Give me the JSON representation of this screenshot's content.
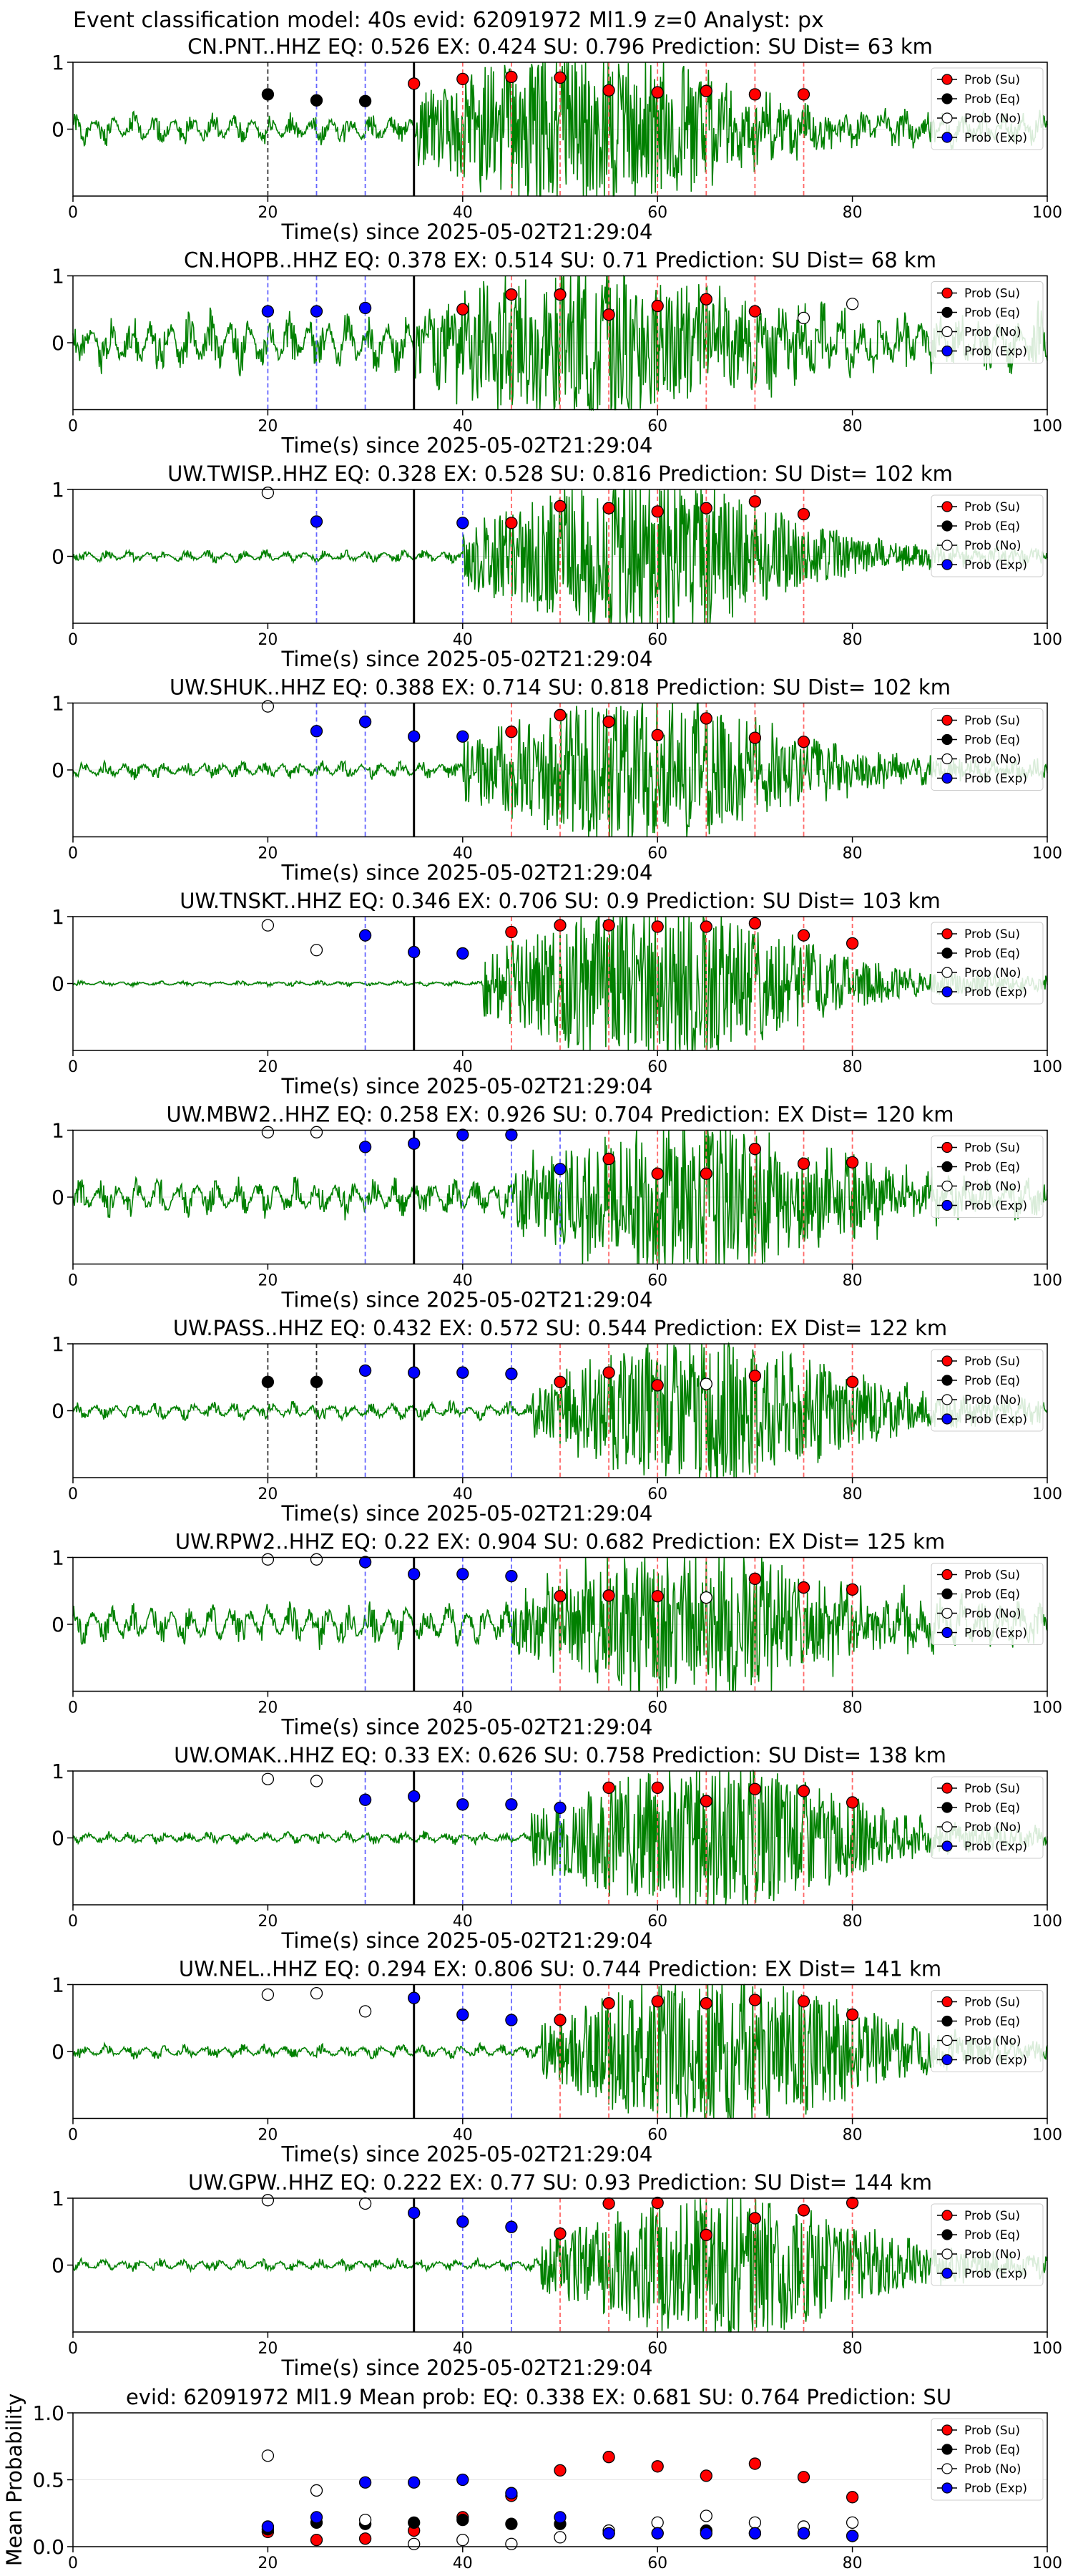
{
  "figure": {
    "suptitle": "Event classification model: 40s evid: 62091972 Ml1.9 z=0 Analyst: px",
    "xlabel": "Time(s) since 2025-05-02T21:29:04",
    "legend": [
      "Prob (Su)",
      "Prob (Eq)",
      "Prob (No)",
      "Prob (Exp)"
    ],
    "colors": {
      "su": "#ff0000",
      "eq": "#000000",
      "no": "#ffffff",
      "exp": "#0000ff",
      "trace": "#008000",
      "blue_line": "#6666ff",
      "red_line": "#ff6666"
    }
  },
  "chart_data": [
    {
      "type": "scatter",
      "title": "CN.PNT..HHZ   EQ: 0.526  EX: 0.424  SU: 0.796   Prediction: SU    Dist= 63 km",
      "xlabel": "Time(s) since 2025-05-02T21:29:04",
      "xlim": [
        0,
        100
      ],
      "ylim": [
        -1,
        1
      ],
      "xticks": [
        0,
        20,
        40,
        60,
        80,
        100
      ],
      "yticks": [
        0,
        1
      ],
      "arrival": 35,
      "noise_level": 0.18,
      "onset": 35,
      "amp": 0.85,
      "seed": 1,
      "series": [
        {
          "name": "Prob (Eq)",
          "x": [
            20,
            25,
            30
          ],
          "y": [
            0.52,
            0.43,
            0.42
          ]
        },
        {
          "name": "Prob (Su)",
          "x": [
            35,
            40,
            45,
            50,
            55,
            60,
            65,
            70,
            75
          ],
          "y": [
            0.68,
            0.75,
            0.78,
            0.77,
            0.58,
            0.55,
            0.57,
            0.52,
            0.52
          ]
        }
      ],
      "blue_lines": [
        25,
        30
      ],
      "black_dashed": [
        20
      ],
      "red_lines": [
        40,
        45,
        50,
        55,
        60,
        65,
        70,
        75
      ]
    },
    {
      "type": "scatter",
      "title": "CN.HOPB..HHZ   EQ: 0.378  EX: 0.514  SU: 0.71   Prediction: SU    Dist= 68 km",
      "xlabel": "Time(s) since 2025-05-02T21:29:04",
      "xlim": [
        0,
        100
      ],
      "ylim": [
        -1,
        1
      ],
      "xticks": [
        0,
        20,
        40,
        60,
        80,
        100
      ],
      "yticks": [
        0,
        1
      ],
      "arrival": 35,
      "noise_level": 0.35,
      "onset": 35,
      "amp": 0.8,
      "seed": 2,
      "series": [
        {
          "name": "Prob (Exp)",
          "x": [
            20,
            25,
            30
          ],
          "y": [
            0.47,
            0.47,
            0.52
          ]
        },
        {
          "name": "Prob (Su)",
          "x": [
            40,
            45,
            50,
            55,
            60,
            65,
            70
          ],
          "y": [
            0.5,
            0.72,
            0.72,
            0.42,
            0.55,
            0.65,
            0.47
          ]
        },
        {
          "name": "Prob (No)",
          "x": [
            75,
            80
          ],
          "y": [
            0.37,
            0.58
          ]
        }
      ],
      "blue_lines": [
        20,
        25,
        30
      ],
      "black_dashed": [],
      "red_lines": [
        45,
        50,
        55,
        60,
        65,
        70
      ]
    },
    {
      "type": "scatter",
      "title": "UW.TWISP..HHZ   EQ: 0.328  EX: 0.528  SU: 0.816   Prediction: SU    Dist= 102 km",
      "xlabel": "Time(s) since 2025-05-02T21:29:04",
      "xlim": [
        0,
        100
      ],
      "ylim": [
        -1,
        1
      ],
      "xticks": [
        0,
        20,
        40,
        60,
        80,
        100
      ],
      "yticks": [
        0,
        1
      ],
      "arrival": 35,
      "noise_level": 0.07,
      "onset": 40,
      "amp": 0.85,
      "seed": 3,
      "series": [
        {
          "name": "Prob (No)",
          "x": [
            20
          ],
          "y": [
            0.95
          ]
        },
        {
          "name": "Prob (Exp)",
          "x": [
            25,
            40
          ],
          "y": [
            0.52,
            0.5
          ]
        },
        {
          "name": "Prob (Su)",
          "x": [
            45,
            50,
            55,
            60,
            65,
            70,
            75
          ],
          "y": [
            0.5,
            0.75,
            0.72,
            0.67,
            0.72,
            0.82,
            0.63
          ]
        }
      ],
      "blue_lines": [
        25,
        40
      ],
      "black_dashed": [],
      "red_lines": [
        45,
        50,
        55,
        60,
        65,
        70,
        75
      ]
    },
    {
      "type": "scatter",
      "title": "UW.SHUK..HHZ   EQ: 0.388  EX: 0.714  SU: 0.818   Prediction: SU    Dist= 102 km",
      "xlabel": "Time(s) since 2025-05-02T21:29:04",
      "xlim": [
        0,
        100
      ],
      "ylim": [
        -1,
        1
      ],
      "xticks": [
        0,
        20,
        40,
        60,
        80,
        100
      ],
      "yticks": [
        0,
        1
      ],
      "arrival": 35,
      "noise_level": 0.1,
      "onset": 40,
      "amp": 0.8,
      "seed": 4,
      "series": [
        {
          "name": "Prob (No)",
          "x": [
            20
          ],
          "y": [
            0.95
          ]
        },
        {
          "name": "Prob (Exp)",
          "x": [
            25,
            30,
            35,
            40
          ],
          "y": [
            0.58,
            0.72,
            0.5,
            0.5
          ]
        },
        {
          "name": "Prob (Su)",
          "x": [
            45,
            50,
            55,
            60,
            65,
            70,
            75
          ],
          "y": [
            0.57,
            0.82,
            0.72,
            0.52,
            0.77,
            0.48,
            0.42
          ]
        }
      ],
      "blue_lines": [
        25,
        30
      ],
      "black_dashed": [],
      "red_lines": [
        45,
        50,
        55,
        60,
        65,
        70,
        75
      ]
    },
    {
      "type": "scatter",
      "title": "UW.TNSKT..HHZ   EQ: 0.346  EX: 0.706  SU: 0.9   Prediction: SU    Dist= 103 km",
      "xlabel": "Time(s) since 2025-05-02T21:29:04",
      "xlim": [
        0,
        100
      ],
      "ylim": [
        -1,
        1
      ],
      "xticks": [
        0,
        20,
        40,
        60,
        80,
        100
      ],
      "yticks": [
        0,
        1
      ],
      "arrival": 35,
      "noise_level": 0.03,
      "onset": 42,
      "amp": 0.9,
      "seed": 5,
      "series": [
        {
          "name": "Prob (No)",
          "x": [
            20,
            25
          ],
          "y": [
            0.87,
            0.5
          ]
        },
        {
          "name": "Prob (Exp)",
          "x": [
            30,
            35,
            40
          ],
          "y": [
            0.72,
            0.47,
            0.45
          ]
        },
        {
          "name": "Prob (Su)",
          "x": [
            45,
            50,
            55,
            60,
            65,
            70,
            75,
            80
          ],
          "y": [
            0.77,
            0.87,
            0.87,
            0.85,
            0.85,
            0.9,
            0.72,
            0.6
          ]
        }
      ],
      "blue_lines": [
        30
      ],
      "black_dashed": [],
      "red_lines": [
        45,
        50,
        55,
        60,
        65,
        70,
        75,
        80
      ]
    },
    {
      "type": "scatter",
      "title": "UW.MBW2..HHZ   EQ: 0.258  EX: 0.926  SU: 0.704   Prediction: EX    Dist= 120 km",
      "xlabel": "Time(s) since 2025-05-02T21:29:04",
      "xlim": [
        0,
        100
      ],
      "ylim": [
        -1,
        1
      ],
      "xticks": [
        0,
        20,
        40,
        60,
        80,
        100
      ],
      "yticks": [
        0,
        1
      ],
      "arrival": 35,
      "noise_level": 0.22,
      "onset": 45,
      "amp": 0.8,
      "seed": 6,
      "series": [
        {
          "name": "Prob (No)",
          "x": [
            20,
            25
          ],
          "y": [
            0.97,
            0.97
          ]
        },
        {
          "name": "Prob (Exp)",
          "x": [
            30,
            35,
            40,
            45,
            50
          ],
          "y": [
            0.75,
            0.8,
            0.93,
            0.93,
            0.42
          ]
        },
        {
          "name": "Prob (Su)",
          "x": [
            55,
            60,
            65,
            70,
            75,
            80
          ],
          "y": [
            0.57,
            0.35,
            0.35,
            0.72,
            0.5,
            0.52
          ]
        }
      ],
      "blue_lines": [
        30,
        35,
        40,
        45,
        50
      ],
      "black_dashed": [],
      "red_lines": [
        55,
        60,
        65,
        70,
        75,
        80
      ]
    },
    {
      "type": "scatter",
      "title": "UW.PASS..HHZ   EQ: 0.432  EX: 0.572  SU: 0.544   Prediction: EX    Dist= 122 km",
      "xlabel": "Time(s) since 2025-05-02T21:29:04",
      "xlim": [
        0,
        100
      ],
      "ylim": [
        -1,
        1
      ],
      "xticks": [
        0,
        20,
        40,
        60,
        80,
        100
      ],
      "yticks": [
        0,
        1
      ],
      "arrival": 35,
      "noise_level": 0.1,
      "onset": 47,
      "amp": 0.75,
      "seed": 7,
      "series": [
        {
          "name": "Prob (Eq)",
          "x": [
            20,
            25
          ],
          "y": [
            0.43,
            0.43
          ]
        },
        {
          "name": "Prob (Exp)",
          "x": [
            30,
            35,
            40,
            45
          ],
          "y": [
            0.6,
            0.57,
            0.57,
            0.55
          ]
        },
        {
          "name": "Prob (Su)",
          "x": [
            50,
            55,
            60,
            70,
            80
          ],
          "y": [
            0.43,
            0.57,
            0.38,
            0.52,
            0.43
          ]
        },
        {
          "name": "Prob (No)",
          "x": [
            65
          ],
          "y": [
            0.4
          ]
        }
      ],
      "blue_lines": [
        30,
        35,
        40,
        45
      ],
      "black_dashed": [
        20,
        25
      ],
      "red_lines": [
        50,
        55,
        60,
        65,
        70,
        75,
        80
      ]
    },
    {
      "type": "scatter",
      "title": "UW.RPW2..HHZ   EQ: 0.22  EX: 0.904  SU: 0.682   Prediction: EX    Dist= 125 km",
      "xlabel": "Time(s) since 2025-05-02T21:29:04",
      "xlim": [
        0,
        100
      ],
      "ylim": [
        -1,
        1
      ],
      "xticks": [
        0,
        20,
        40,
        60,
        80,
        100
      ],
      "yticks": [
        0,
        1
      ],
      "arrival": 35,
      "noise_level": 0.25,
      "onset": 45,
      "amp": 0.75,
      "seed": 8,
      "series": [
        {
          "name": "Prob (No)",
          "x": [
            20,
            25
          ],
          "y": [
            0.97,
            0.97
          ]
        },
        {
          "name": "Prob (Exp)",
          "x": [
            30,
            35,
            40,
            45
          ],
          "y": [
            0.93,
            0.75,
            0.75,
            0.72
          ]
        },
        {
          "name": "Prob (Su)",
          "x": [
            50,
            55,
            60,
            70,
            75,
            80
          ],
          "y": [
            0.42,
            0.43,
            0.42,
            0.68,
            0.55,
            0.52
          ]
        },
        {
          "name": "Prob (No)",
          "x": [
            65
          ],
          "y": [
            0.4
          ]
        }
      ],
      "blue_lines": [
        30,
        35,
        40,
        45
      ],
      "black_dashed": [],
      "red_lines": [
        50,
        55,
        60,
        65,
        70,
        75,
        80
      ]
    },
    {
      "type": "scatter",
      "title": "UW.OMAK..HHZ   EQ: 0.33  EX: 0.626  SU: 0.758   Prediction: SU    Dist= 138 km",
      "xlabel": "Time(s) since 2025-05-02T21:29:04",
      "xlim": [
        0,
        100
      ],
      "ylim": [
        -1,
        1
      ],
      "xticks": [
        0,
        20,
        40,
        60,
        80,
        100
      ],
      "yticks": [
        0,
        1
      ],
      "arrival": 35,
      "noise_level": 0.07,
      "onset": 47,
      "amp": 0.8,
      "seed": 9,
      "series": [
        {
          "name": "Prob (No)",
          "x": [
            20,
            25
          ],
          "y": [
            0.88,
            0.85
          ]
        },
        {
          "name": "Prob (Exp)",
          "x": [
            30,
            35,
            40,
            45,
            50
          ],
          "y": [
            0.57,
            0.62,
            0.5,
            0.5,
            0.45
          ]
        },
        {
          "name": "Prob (Su)",
          "x": [
            55,
            60,
            65,
            70,
            75,
            80
          ],
          "y": [
            0.75,
            0.75,
            0.55,
            0.73,
            0.7,
            0.53
          ]
        }
      ],
      "blue_lines": [
        30,
        40,
        45,
        50
      ],
      "black_dashed": [],
      "red_lines": [
        55,
        60,
        65,
        70,
        75,
        80
      ]
    },
    {
      "type": "scatter",
      "title": "UW.NEL..HHZ   EQ: 0.294  EX: 0.806  SU: 0.744   Prediction: EX    Dist= 141 km",
      "xlabel": "Time(s) since 2025-05-02T21:29:04",
      "xlim": [
        0,
        100
      ],
      "ylim": [
        -1,
        1
      ],
      "xticks": [
        0,
        20,
        40,
        60,
        80,
        100
      ],
      "yticks": [
        0,
        1
      ],
      "arrival": 35,
      "noise_level": 0.08,
      "onset": 48,
      "amp": 0.85,
      "seed": 10,
      "series": [
        {
          "name": "Prob (No)",
          "x": [
            20,
            25,
            30
          ],
          "y": [
            0.85,
            0.87,
            0.6
          ]
        },
        {
          "name": "Prob (Exp)",
          "x": [
            35,
            40,
            45
          ],
          "y": [
            0.8,
            0.55,
            0.47
          ]
        },
        {
          "name": "Prob (Su)",
          "x": [
            50,
            55,
            60,
            65,
            70,
            75,
            80
          ],
          "y": [
            0.47,
            0.72,
            0.75,
            0.72,
            0.77,
            0.75,
            0.55
          ]
        }
      ],
      "blue_lines": [
        40,
        45
      ],
      "black_dashed": [],
      "red_lines": [
        50,
        55,
        60,
        65,
        70,
        75,
        80
      ]
    },
    {
      "type": "scatter",
      "title": "UW.GPW..HHZ   EQ: 0.222  EX: 0.77  SU: 0.93   Prediction: SU    Dist= 144 km",
      "xlabel": "Time(s) since 2025-05-02T21:29:04",
      "xlim": [
        0,
        100
      ],
      "ylim": [
        -1,
        1
      ],
      "xticks": [
        0,
        20,
        40,
        60,
        80,
        100
      ],
      "yticks": [
        0,
        1
      ],
      "arrival": 35,
      "noise_level": 0.07,
      "onset": 48,
      "amp": 0.75,
      "seed": 11,
      "series": [
        {
          "name": "Prob (No)",
          "x": [
            20,
            30
          ],
          "y": [
            0.97,
            0.92
          ]
        },
        {
          "name": "Prob (Exp)",
          "x": [
            35,
            40,
            45
          ],
          "y": [
            0.78,
            0.65,
            0.57
          ]
        },
        {
          "name": "Prob (Su)",
          "x": [
            50,
            55,
            60,
            65,
            70,
            75,
            80
          ],
          "y": [
            0.47,
            0.92,
            0.93,
            0.45,
            0.7,
            0.82,
            0.93
          ]
        }
      ],
      "blue_lines": [
        40,
        45
      ],
      "black_dashed": [],
      "red_lines": [
        50,
        55,
        60,
        65,
        70,
        75,
        80
      ]
    },
    {
      "type": "scatter",
      "title": "evid: 62091972  Ml1.9    Mean prob:    EQ: 0.338  EX: 0.681  SU: 0.764    Prediction: SU",
      "xlim": [
        0,
        100
      ],
      "ylim": [
        0,
        1
      ],
      "xticks": [
        0,
        20,
        40,
        60,
        80,
        100
      ],
      "yticks": [
        0.0,
        0.5,
        1.0
      ],
      "ylabel": "Mean Probability",
      "series": [
        {
          "name": "Prob (Su)",
          "x": [
            20,
            25,
            30,
            35,
            40,
            45,
            50,
            55,
            60,
            65,
            70,
            75,
            80
          ],
          "y": [
            0.11,
            0.05,
            0.06,
            0.12,
            0.22,
            0.38,
            0.57,
            0.67,
            0.6,
            0.53,
            0.62,
            0.52,
            0.37
          ]
        },
        {
          "name": "Prob (Eq)",
          "x": [
            20,
            25,
            30,
            35,
            40,
            45,
            50,
            55,
            60,
            65,
            70,
            75,
            80
          ],
          "y": [
            0.13,
            0.18,
            0.17,
            0.18,
            0.2,
            0.17,
            0.17,
            0.1,
            0.1,
            0.12,
            0.1,
            0.1,
            0.08
          ]
        },
        {
          "name": "Prob (No)",
          "x": [
            20,
            25,
            30,
            35,
            40,
            45,
            50,
            55,
            60,
            65,
            70,
            75,
            80
          ],
          "y": [
            0.68,
            0.42,
            0.2,
            0.02,
            0.05,
            0.02,
            0.07,
            0.12,
            0.18,
            0.23,
            0.18,
            0.15,
            0.18
          ]
        },
        {
          "name": "Prob (Exp)",
          "x": [
            20,
            25,
            30,
            35,
            40,
            45,
            50,
            55,
            60,
            65,
            70,
            75,
            80
          ],
          "y": [
            0.15,
            0.22,
            0.48,
            0.48,
            0.5,
            0.4,
            0.22,
            0.1,
            0.1,
            0.1,
            0.1,
            0.1,
            0.08
          ]
        }
      ]
    }
  ]
}
